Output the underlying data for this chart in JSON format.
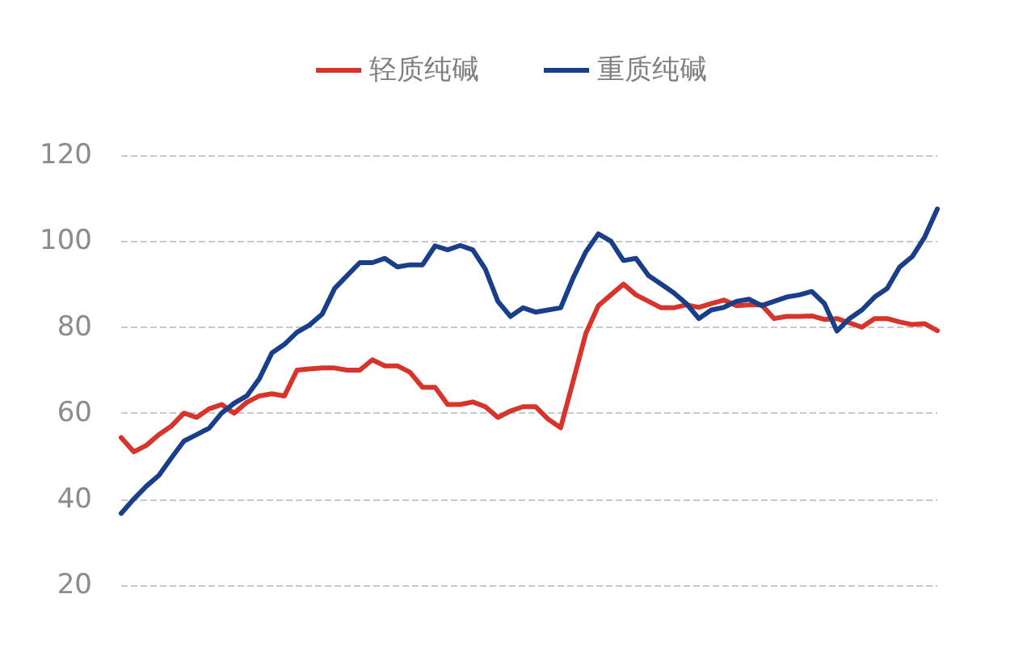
{
  "chart_data": {
    "type": "line",
    "categories": [
      null,
      null,
      null,
      null,
      null,
      null,
      null,
      null,
      null,
      null,
      null,
      null,
      null,
      null,
      null,
      null,
      null,
      null,
      null,
      null,
      null,
      null,
      null,
      null,
      null,
      null,
      null,
      null,
      null,
      null,
      null,
      null,
      null,
      null,
      null,
      null,
      null,
      null,
      null,
      null,
      null,
      null,
      null,
      null,
      null,
      null,
      null,
      null,
      null,
      null,
      null,
      null,
      null,
      null,
      null,
      null,
      null,
      null,
      null,
      null,
      null,
      null,
      null,
      null,
      null,
      null
    ],
    "series": [
      {
        "name": "轻质纯碱",
        "color": "#d7352b",
        "values": [
          54.3,
          51,
          52.5,
          55,
          57,
          60,
          59,
          61,
          62,
          60,
          62.5,
          64,
          64.5,
          64,
          70,
          70.3,
          70.5,
          70.5,
          70,
          70,
          72.4,
          71,
          71,
          69.5,
          66,
          66,
          62,
          62,
          62.6,
          61.5,
          59,
          60.5,
          61.5,
          61.5,
          58.6,
          56.6,
          67.5,
          78.5,
          85,
          87.5,
          90,
          87.5,
          86,
          84.5,
          84.5,
          85.2,
          84.6,
          85.5,
          86.3,
          85,
          85.2,
          85.2,
          82,
          82.5,
          82.5,
          82.6,
          81.8,
          82,
          81,
          80,
          82,
          82,
          81.2,
          80.6,
          80.8,
          79.2
        ]
      },
      {
        "name": "重质纯碱",
        "color": "#1a3f8a",
        "values": [
          36.7,
          40,
          43,
          45.5,
          49.6,
          53.5,
          55,
          56.5,
          60,
          62.3,
          64,
          68,
          74,
          76,
          78.8,
          80.5,
          83,
          89,
          92,
          95,
          95,
          96,
          94,
          94.5,
          94.5,
          98.9,
          98,
          99,
          98,
          93.5,
          86,
          82.5,
          84.5,
          83.5,
          84,
          84.5,
          91.5,
          97.5,
          101.7,
          100,
          95.5,
          96,
          92,
          90,
          88,
          85.5,
          82,
          84,
          84.6,
          86,
          86.5,
          85,
          86,
          87,
          87.5,
          88.3,
          85.5,
          79.1,
          82,
          84,
          87,
          89,
          94,
          96.4,
          101,
          107.5
        ]
      }
    ],
    "ylim": [
      20,
      120
    ],
    "yticks": [
      20,
      40,
      60,
      80,
      100,
      120
    ],
    "grid": "y",
    "legend": "top",
    "marker": "none",
    "line_style": "solid"
  }
}
